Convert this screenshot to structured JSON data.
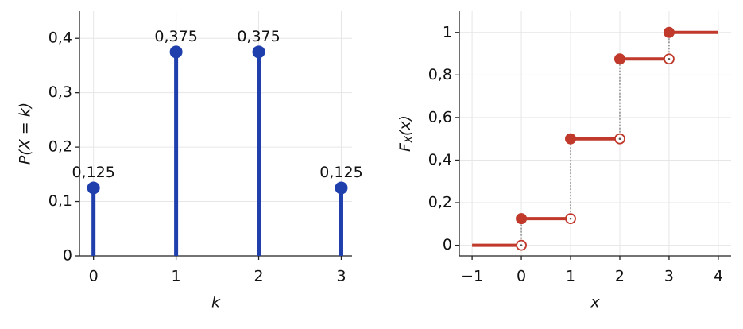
{
  "chart_data": [
    {
      "type": "stem",
      "categories": [
        0,
        1,
        2,
        3
      ],
      "values": [
        0.125,
        0.375,
        0.375,
        0.125
      ],
      "value_labels": [
        "0,125",
        "0,375",
        "0,375",
        "0,125"
      ],
      "color": "#1f3fad",
      "xlabel": "k",
      "ylabel": "P(X = k)",
      "xlim": [
        -0.17,
        3.13
      ],
      "xticks": [
        0,
        1,
        2,
        3
      ],
      "ylim": [
        0,
        0.45
      ],
      "yticks": [
        0,
        {
          "value": 0.1,
          "label": "0,1"
        },
        {
          "value": 0.2,
          "label": "0,2"
        },
        {
          "value": 0.3,
          "label": "0,3"
        },
        {
          "value": 0.4,
          "label": "0,4"
        }
      ],
      "grid": true
    },
    {
      "type": "step",
      "x": [
        -1,
        0,
        1,
        2,
        3,
        4
      ],
      "values": [
        0,
        0.125,
        0.5,
        0.875,
        1,
        1
      ],
      "color": "#c0392b",
      "xlabel": "x",
      "ylabel": {
        "main": "F",
        "sub": "X",
        "rest": "(x)"
      },
      "xlim": [
        -1.26,
        4.26
      ],
      "xticks": [
        {
          "value": -1,
          "label": "−1"
        },
        0,
        1,
        2,
        3,
        4
      ],
      "ylim": [
        -0.05,
        1.1
      ],
      "yticks": [
        0,
        {
          "value": 0.2,
          "label": "0,2"
        },
        {
          "value": 0.4,
          "label": "0,4"
        },
        {
          "value": 0.6,
          "label": "0,6"
        },
        {
          "value": 0.8,
          "label": "0,8"
        },
        1
      ],
      "grid": true
    }
  ]
}
